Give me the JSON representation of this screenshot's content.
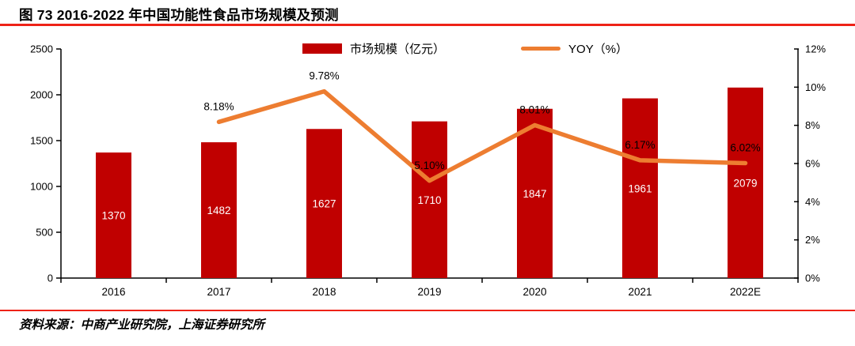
{
  "title": "图 73 2016-2022 年中国功能性食品市场规模及预测",
  "source": "资料来源：中商产业研究院，上海证券研究所",
  "legend": {
    "bar_label": "市场规模（亿元）",
    "line_label": "YOY（%）"
  },
  "colors": {
    "bar": "#c00000",
    "line": "#ed7d31",
    "divider": "#ee2217",
    "axis": "#000000",
    "bar_label_text": "#ffffff",
    "yoy_label_text": "#000000"
  },
  "chart_data": {
    "type": "bar",
    "categories": [
      "2016",
      "2017",
      "2018",
      "2019",
      "2020",
      "2021",
      "2022E"
    ],
    "series": [
      {
        "name": "市场规模（亿元）",
        "type": "bar",
        "axis": "left",
        "values": [
          1370,
          1482,
          1627,
          1710,
          1847,
          1961,
          2079
        ],
        "labels": [
          "1370",
          "1482",
          "1627",
          "1710",
          "1847",
          "1961",
          "2079"
        ]
      },
      {
        "name": "YOY（%）",
        "type": "line",
        "axis": "right",
        "values": [
          null,
          8.18,
          9.78,
          5.1,
          8.01,
          6.17,
          6.02
        ],
        "labels": [
          null,
          "8.18%",
          "9.78%",
          "5.10%",
          "8.01%",
          "6.17%",
          "6.02%"
        ]
      }
    ],
    "left_axis": {
      "min": 0,
      "max": 2500,
      "step": 500,
      "tick_labels": [
        "0",
        "500",
        "1000",
        "1500",
        "2000",
        "2500"
      ]
    },
    "right_axis": {
      "min": 0,
      "max": 12,
      "step": 2,
      "tick_labels": [
        "0%",
        "2%",
        "4%",
        "6%",
        "8%",
        "10%",
        "12%"
      ]
    },
    "grid": false,
    "legend_position": "top-center",
    "title": "图 73 2016-2022 年中国功能性食品市场规模及预测",
    "xlabel": "",
    "ylabel_left": "市场规模（亿元）",
    "ylabel_right": "YOY（%）"
  }
}
